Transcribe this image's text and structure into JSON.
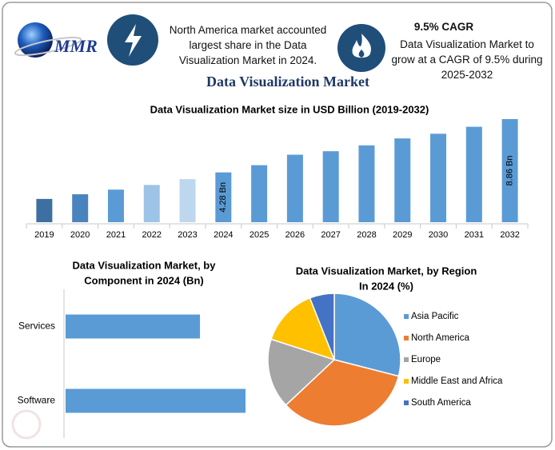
{
  "header": {
    "logo": "MMR",
    "highlight": "North America market accounted largest share in the Data Visualization Market in 2024.",
    "cagr_title": "9.5% CAGR",
    "cagr_text": "Data Visualization Market to grow at a CAGR of 9.5% during 2025-2032",
    "title": "Data Visualization Market"
  },
  "chart_data": [
    {
      "type": "bar",
      "title": "Data Visualization Market size in USD Billion (2019-2032)",
      "categories": [
        "2019",
        "2020",
        "2021",
        "2022",
        "2023",
        "2024",
        "2025",
        "2026",
        "2027",
        "2028",
        "2029",
        "2030",
        "2031",
        "2032"
      ],
      "values": [
        2.0,
        2.4,
        2.8,
        3.2,
        3.7,
        4.28,
        4.9,
        5.8,
        6.1,
        6.6,
        7.2,
        7.6,
        8.2,
        8.86
      ],
      "value_labels": [
        null,
        null,
        null,
        null,
        null,
        "4.28 Bn",
        null,
        null,
        null,
        null,
        null,
        null,
        null,
        "8.86 Bn"
      ],
      "colors": [
        "#3e6fa2",
        "#4a84be",
        "#5b9bd5",
        "#9dc3e6",
        "#bdd7ee",
        "#5b9bd5",
        "#5b9bd5",
        "#5b9bd5",
        "#5b9bd5",
        "#5b9bd5",
        "#5b9bd5",
        "#5b9bd5",
        "#5b9bd5",
        "#5b9bd5"
      ]
    },
    {
      "type": "hbar",
      "title": [
        "Data Visualization Market, by",
        "Component in 2024 (Bn)"
      ],
      "categories": [
        "Services",
        "Software"
      ],
      "values": [
        1.83,
        2.45
      ],
      "color": "#5b9bd5"
    },
    {
      "type": "pie",
      "title": [
        "Data Visualization Market, by Region",
        "In 2024 (%)"
      ],
      "categories": [
        "Asia Pacific",
        "North America",
        "Europe",
        "Middle East and Africa",
        "South America"
      ],
      "values": [
        29,
        34,
        17,
        14,
        6
      ],
      "colors": [
        "#5b9bd5",
        "#ed7d31",
        "#a5a5a5",
        "#ffc000",
        "#4472c4"
      ],
      "legend": "right"
    }
  ]
}
